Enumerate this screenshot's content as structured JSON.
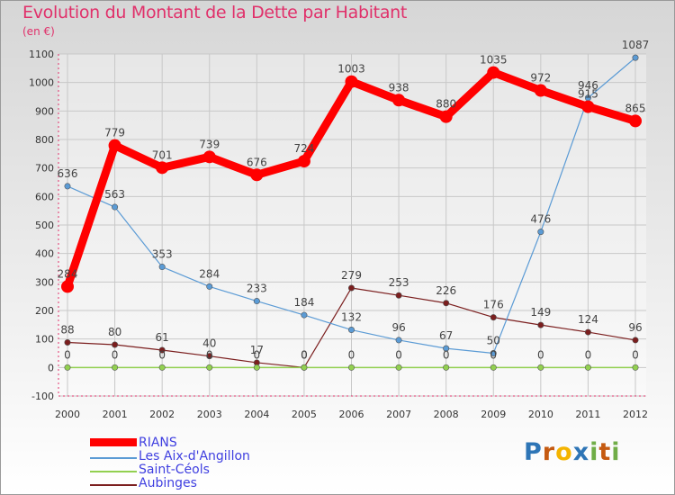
{
  "chart_data": {
    "type": "line",
    "title": "Evolution du Montant de la Dette par Habitant",
    "subtitle": "(en €)",
    "x": [
      "2000",
      "2001",
      "2002",
      "2003",
      "2004",
      "2005",
      "2006",
      "2007",
      "2008",
      "2009",
      "2010",
      "2011",
      "2012"
    ],
    "ylim": [
      -100,
      1100
    ],
    "yticks": [
      -100,
      0,
      100,
      200,
      300,
      400,
      500,
      600,
      700,
      800,
      900,
      1000,
      1100
    ],
    "grid": true,
    "legend_position": "bottom-left",
    "series": [
      {
        "name": "RIANS",
        "color": "#ff0000",
        "values": [
          284,
          779,
          701,
          739,
          676,
          724,
          1003,
          938,
          880,
          1035,
          972,
          915,
          865
        ]
      },
      {
        "name": "Les Aix-d'Angillon",
        "color": "#5b9bd5",
        "values": [
          636,
          563,
          353,
          284,
          233,
          184,
          132,
          96,
          67,
          50,
          476,
          946,
          1087
        ]
      },
      {
        "name": "Saint-Céols",
        "color": "#92d050",
        "values": [
          0,
          0,
          0,
          0,
          0,
          0,
          0,
          0,
          0,
          0,
          0,
          0,
          0
        ]
      },
      {
        "name": "Aubinges",
        "color": "#7b1e1e",
        "values": [
          88,
          80,
          61,
          40,
          17,
          0,
          279,
          253,
          226,
          176,
          149,
          124,
          96
        ]
      }
    ],
    "data_labels": [
      [
        "284",
        "779",
        "701",
        "739",
        "676",
        "724",
        "1003",
        "938",
        "880",
        "1035",
        "972",
        "915",
        "865"
      ],
      [
        "636",
        "563",
        "353",
        "284",
        "233",
        "184",
        "132",
        "96",
        "67",
        "50",
        "476",
        "946",
        "1087"
      ],
      [
        "0",
        "0",
        "0",
        "0",
        "0",
        "0",
        "0",
        "0",
        "0",
        "0",
        "0",
        "0",
        "0"
      ],
      [
        "88",
        "80",
        "61",
        "40",
        "17",
        "0",
        "279",
        "253",
        "226",
        "176",
        "149",
        "124",
        "96"
      ]
    ]
  },
  "branding": {
    "letters": [
      "P",
      "r",
      "o",
      "x",
      "i",
      "t",
      "i"
    ],
    "letter_colors": [
      "#2e75b6",
      "#c55a11",
      "#f4b400",
      "#2e75b6",
      "#70ad47",
      "#c55a11",
      "#70ad47"
    ]
  }
}
